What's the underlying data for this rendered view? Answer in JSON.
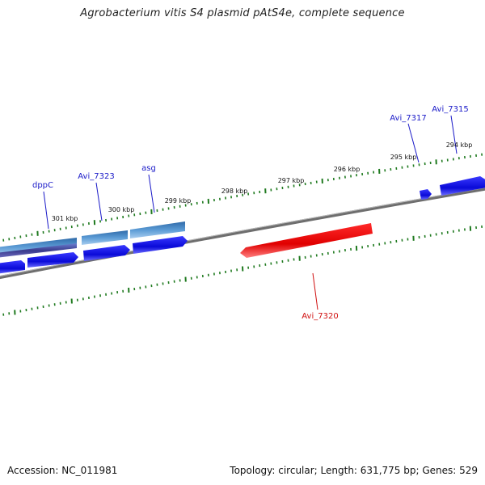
{
  "title": "Agrobacterium vitis S4 plasmid pAtS4e, complete sequence",
  "footer": {
    "accession": "Accession: NC_011981",
    "summary": "Topology: circular; Length: 631,775 bp; Genes: 529"
  },
  "colors": {
    "backbone": "#808080",
    "tick": "#1f7a1f",
    "forward_gene": "#1010e0",
    "reverse_gene": "#ee1111",
    "cds_band_light": "#5b9bd5",
    "cds_band_dark": "#3a3a8c",
    "label_blue": "#1a1ac8",
    "label_red": "#d01010"
  },
  "scale_labels": [
    "301 kbp",
    "300 kbp",
    "299 kbp",
    "298 kbp",
    "297 kbp",
    "296 kbp",
    "295 kbp",
    "294 kbp"
  ],
  "genes": {
    "dppC": "dppC",
    "avi7323": "Avi_7323",
    "asg": "asg",
    "avi7317": "Avi_7317",
    "avi7315": "Avi_7315",
    "avi7320": "Avi_7320"
  }
}
